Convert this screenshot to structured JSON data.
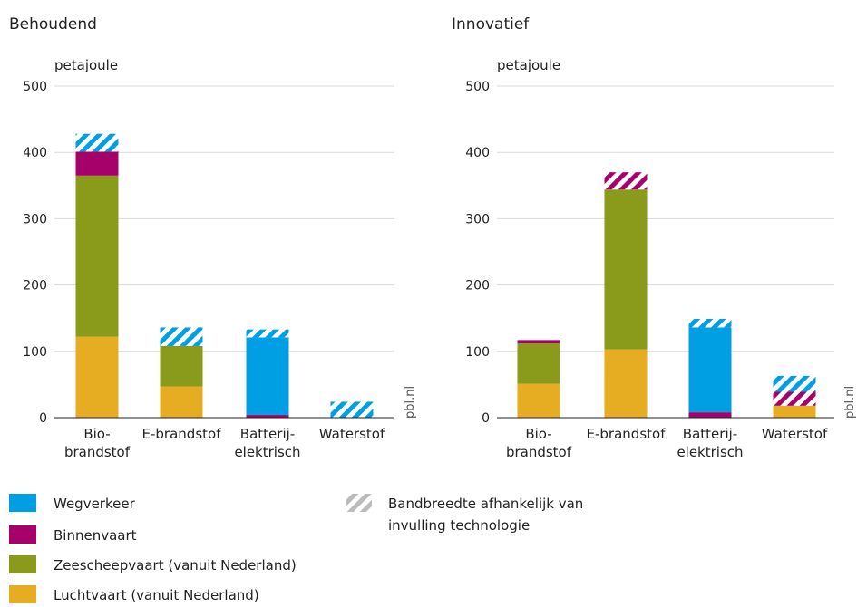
{
  "colors": {
    "wegverkeer": "#009fe3",
    "binnenvaart": "#a8006b",
    "zeescheepvaart": "#8a9a1b",
    "luchtvaart": "#e6ac22",
    "bandbreedte": "#bbbbbb"
  },
  "credit": "pbl.nl",
  "legend": {
    "items": [
      {
        "key": "wegverkeer",
        "label": "Wegverkeer"
      },
      {
        "key": "binnenvaart",
        "label": "Binnenvaart"
      },
      {
        "key": "zeescheepvaart",
        "label": "Zeescheepvaart (vanuit Nederland)"
      },
      {
        "key": "luchtvaart",
        "label": "Luchtvaart (vanuit Nederland)"
      }
    ],
    "bandbreedte": [
      "Bandbreedte afhankelijk van",
      "invulling technologie"
    ]
  },
  "chart_data": [
    {
      "type": "bar",
      "stacked": true,
      "title": "Behoudend",
      "ylabel": "petajoule",
      "ylim": [
        0,
        500
      ],
      "yticks": [
        0,
        100,
        200,
        300,
        400,
        500
      ],
      "categories": [
        [
          "Bio-",
          "brandstof"
        ],
        [
          "E-brandstof"
        ],
        [
          "Batterij-",
          "elektrisch"
        ],
        [
          "Waterstof"
        ]
      ],
      "series": [
        {
          "name": "Luchtvaart (vanuit Nederland)",
          "key": "luchtvaart",
          "values": [
            122,
            47,
            0,
            0
          ]
        },
        {
          "name": "Zeescheepvaart (vanuit Nederland)",
          "key": "zeescheepvaart",
          "values": [
            243,
            61,
            0,
            0
          ]
        },
        {
          "name": "Binnenvaart",
          "key": "binnenvaart",
          "values": [
            36,
            0,
            4,
            0
          ]
        },
        {
          "name": "Wegverkeer",
          "key": "wegverkeer",
          "values": [
            0,
            0,
            117,
            0
          ]
        }
      ],
      "bandwidth": [
        [
          {
            "key": "wegverkeer",
            "value": 27
          }
        ],
        [
          {
            "key": "wegverkeer",
            "value": 28
          }
        ],
        [
          {
            "key": "wegverkeer",
            "value": 12
          }
        ],
        [
          {
            "key": "wegverkeer",
            "value": 24
          }
        ]
      ],
      "grid": true
    },
    {
      "type": "bar",
      "stacked": true,
      "title": "Innovatief",
      "ylabel": "petajoule",
      "ylim": [
        0,
        500
      ],
      "yticks": [
        0,
        100,
        200,
        300,
        400,
        500
      ],
      "categories": [
        [
          "Bio-",
          "brandstof"
        ],
        [
          "E-brandstof"
        ],
        [
          "Batterij-",
          "elektrisch"
        ],
        [
          "Waterstof"
        ]
      ],
      "series": [
        {
          "name": "Luchtvaart (vanuit Nederland)",
          "key": "luchtvaart",
          "values": [
            51,
            103,
            0,
            18
          ]
        },
        {
          "name": "Zeescheepvaart (vanuit Nederland)",
          "key": "zeescheepvaart",
          "values": [
            61,
            241,
            0,
            0
          ]
        },
        {
          "name": "Binnenvaart",
          "key": "binnenvaart",
          "values": [
            5,
            0,
            8,
            0
          ]
        },
        {
          "name": "Wegverkeer",
          "key": "wegverkeer",
          "values": [
            0,
            0,
            128,
            0
          ]
        }
      ],
      "bandwidth": [
        [],
        [
          {
            "key": "binnenvaart",
            "value": 26
          }
        ],
        [
          {
            "key": "wegverkeer",
            "value": 13
          }
        ],
        [
          {
            "key": "binnenvaart",
            "value": 21
          },
          {
            "key": "wegverkeer",
            "value": 24
          }
        ]
      ],
      "grid": true
    }
  ]
}
